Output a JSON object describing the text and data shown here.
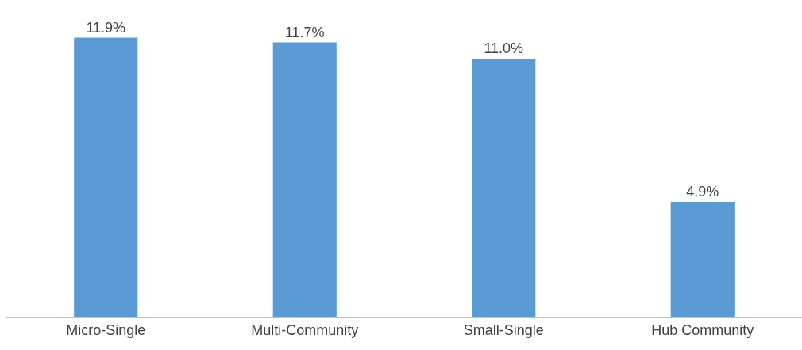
{
  "chart_data": {
    "type": "bar",
    "categories": [
      "Micro-Single",
      "Multi-Community",
      "Small-Single",
      "Hub Community"
    ],
    "values": [
      11.9,
      11.7,
      11.0,
      4.9
    ],
    "value_labels": [
      "11.9%",
      "11.7%",
      "11.0%",
      "4.9%"
    ],
    "color": "#5b9bd5"
  }
}
